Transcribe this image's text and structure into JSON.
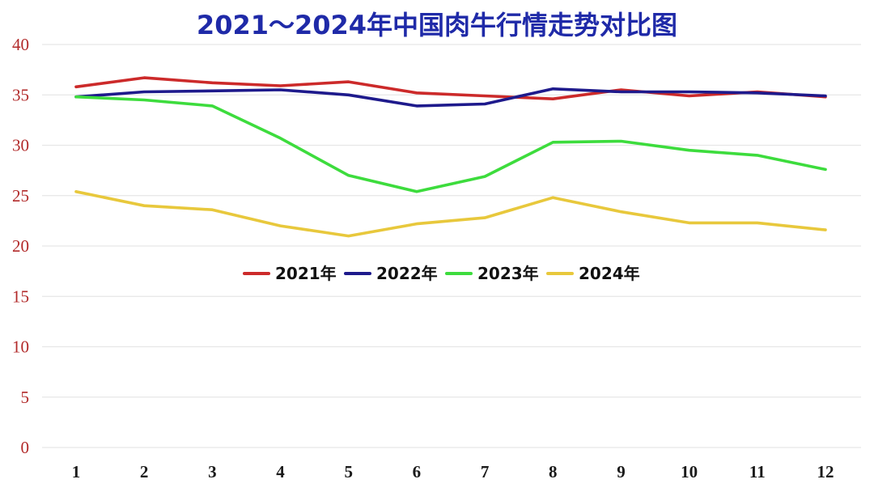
{
  "chart_data": {
    "type": "line",
    "title": "2021～2024年中国肉牛行情走势对比图",
    "xlabel": "",
    "ylabel": "",
    "categories": [
      "1",
      "2",
      "3",
      "4",
      "5",
      "6",
      "7",
      "8",
      "9",
      "10",
      "11",
      "12"
    ],
    "yticks": [
      "0",
      "5",
      "10",
      "15",
      "20",
      "25",
      "30",
      "35",
      "40"
    ],
    "ylim": [
      0,
      40
    ],
    "grid": true,
    "legend_position": "center",
    "series": [
      {
        "name": "2021年",
        "color": "#cc2a2a",
        "values": [
          35.8,
          36.7,
          36.2,
          35.9,
          36.3,
          35.2,
          34.9,
          34.6,
          35.5,
          34.9,
          35.3,
          34.8
        ]
      },
      {
        "name": "2022年",
        "color": "#1e1a8c",
        "values": [
          34.8,
          35.3,
          35.4,
          35.5,
          35.0,
          33.9,
          34.1,
          35.6,
          35.3,
          35.3,
          35.2,
          34.9
        ]
      },
      {
        "name": "2023年",
        "color": "#3ddc3d",
        "values": [
          34.8,
          34.5,
          33.9,
          30.7,
          27.0,
          25.4,
          26.9,
          30.3,
          30.4,
          29.5,
          29.0,
          27.6
        ]
      },
      {
        "name": "2024年",
        "color": "#e8c83c",
        "values": [
          25.4,
          24.0,
          23.6,
          22.0,
          21.0,
          22.2,
          22.8,
          24.8,
          23.4,
          22.3,
          22.3,
          21.6
        ]
      }
    ],
    "colors": {
      "title": "#1f2aa8",
      "ytick": "#b22a2a",
      "xtick": "#1a1a1a",
      "grid": "#e6e6e6"
    }
  }
}
